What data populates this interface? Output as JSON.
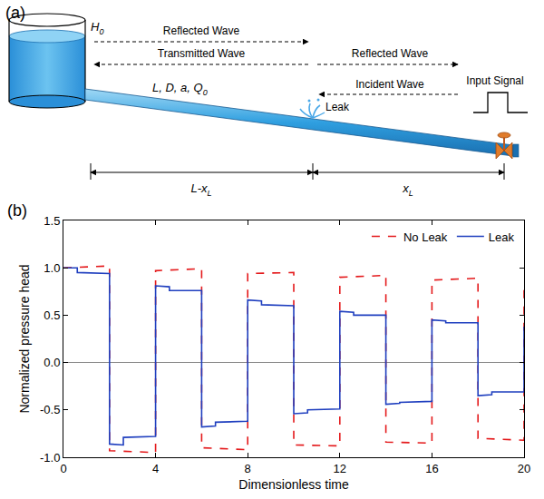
{
  "panels": {
    "a": "(a)",
    "b": "(b)"
  },
  "diagram": {
    "tank": {
      "text": "H",
      "sub": "0"
    },
    "pipe": {
      "text": "L, D, a, Q",
      "sub": "0"
    },
    "leak": "Leak",
    "input": "Input Signal",
    "waves_left": [
      "Reflected Wave",
      "Transmitted Wave"
    ],
    "waves_right": [
      "Reflected Wave",
      "Incident Wave"
    ],
    "segments": [
      {
        "text": "L-x",
        "sub": "L"
      },
      {
        "text": "x",
        "sub": "L"
      }
    ]
  },
  "chart_data": {
    "type": "line",
    "x_label": "Dimensionless time",
    "y_label": "Normalized pressure head",
    "xlim": [
      0,
      20
    ],
    "xticks": [
      0,
      4,
      8,
      12,
      16,
      20
    ],
    "ylim": [
      -1,
      1.5
    ],
    "yticks": [
      {
        "value": -1,
        "label": "-1.0"
      },
      -0.5,
      {
        "value": 0,
        "label": "0.0"
      },
      0.5,
      {
        "value": 1,
        "label": "1.0"
      },
      1.5
    ],
    "grid": false,
    "legend": "top right",
    "series": [
      {
        "name": "No Leak",
        "color": "#e41a1c",
        "line_style": "dashed",
        "x": [
          0,
          2,
          2,
          4,
          4,
          6,
          6,
          8,
          8,
          10,
          10,
          12,
          12,
          14,
          14,
          16,
          16,
          18,
          18,
          20,
          20
        ],
        "values": [
          1.0,
          1.02,
          -0.93,
          -0.95,
          0.97,
          0.99,
          -0.9,
          -0.92,
          0.94,
          0.95,
          -0.87,
          -0.88,
          0.9,
          0.92,
          -0.84,
          -0.85,
          0.87,
          0.89,
          -0.8,
          -0.82,
          0.85
        ]
      },
      {
        "name": "Leak",
        "color": "#1f3fbf",
        "line_style": "solid",
        "x": [
          0,
          0.6,
          0.6,
          2,
          2,
          2.6,
          2.6,
          4,
          4,
          4.6,
          4.6,
          6,
          6,
          6.6,
          6.6,
          8,
          8,
          8.6,
          8.6,
          10,
          10,
          10.6,
          10.6,
          12,
          12,
          12.6,
          12.6,
          14,
          14,
          14.6,
          14.6,
          16,
          16,
          16.6,
          16.6,
          18,
          18,
          18.6,
          18.6,
          20,
          20
        ],
        "values": [
          1.0,
          1.0,
          0.95,
          0.94,
          -0.86,
          -0.87,
          -0.79,
          -0.78,
          0.81,
          0.8,
          0.76,
          0.76,
          -0.68,
          -0.67,
          -0.63,
          -0.62,
          0.66,
          0.65,
          0.61,
          0.6,
          -0.54,
          -0.53,
          -0.5,
          -0.49,
          0.54,
          0.53,
          0.5,
          0.5,
          -0.44,
          -0.43,
          -0.42,
          -0.41,
          0.45,
          0.44,
          0.42,
          0.42,
          -0.35,
          -0.34,
          -0.31,
          -0.31,
          0.38
        ]
      }
    ]
  }
}
